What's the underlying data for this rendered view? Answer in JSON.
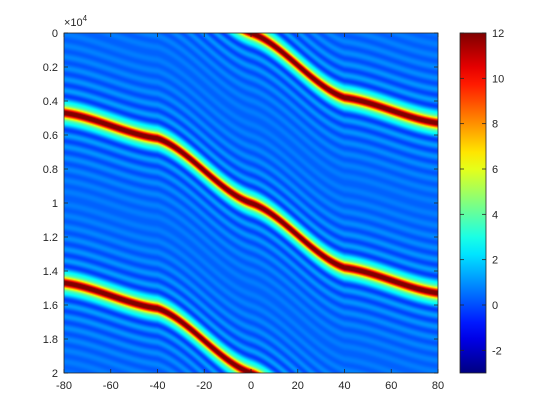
{
  "chart_data": {
    "type": "heatmap",
    "title": "",
    "xlabel": "",
    "ylabel": "",
    "x_range": [
      -80,
      80
    ],
    "y_range": [
      0,
      2
    ],
    "y_multiplier": "10^4",
    "y_direction": "reverse",
    "x_ticks": [
      "-80",
      "-60",
      "-40",
      "-20",
      "0",
      "20",
      "40",
      "60",
      "80"
    ],
    "y_ticks": [
      "0",
      "0.2",
      "0.4",
      "0.6",
      "0.8",
      "1",
      "1.2",
      "1.4",
      "1.6",
      "1.8",
      "2"
    ],
    "colorbar": {
      "range": [
        -3,
        12
      ],
      "ticks": [
        "-2",
        "0",
        "2",
        "4",
        "6",
        "8",
        "10",
        "12"
      ],
      "colormap": "jet"
    },
    "background_value": 0.5,
    "peak_value": 12,
    "ridges": [
      {
        "y_center": 0,
        "points": [
          [
            -80,
            -0.53
          ],
          [
            -40,
            -0.38
          ],
          [
            0,
            0
          ],
          [
            40,
            0.38
          ],
          [
            80,
            0.53
          ]
        ]
      },
      {
        "y_center": 1.0,
        "points": [
          [
            -80,
            0.47
          ],
          [
            -40,
            0.62
          ],
          [
            0,
            1.0
          ],
          [
            40,
            1.38
          ],
          [
            80,
            1.53
          ]
        ]
      },
      {
        "y_center": 2.0,
        "points": [
          [
            -80,
            1.47
          ],
          [
            -40,
            1.62
          ],
          [
            0,
            2.0
          ],
          [
            40,
            2.38
          ],
          [
            80,
            2.53
          ]
        ]
      }
    ],
    "grid": false
  }
}
